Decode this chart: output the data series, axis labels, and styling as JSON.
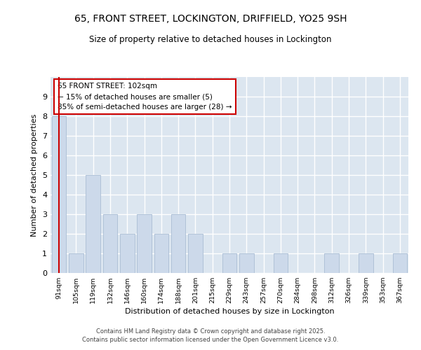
{
  "title_line1": "65, FRONT STREET, LOCKINGTON, DRIFFIELD, YO25 9SH",
  "title_line2": "Size of property relative to detached houses in Lockington",
  "xlabel": "Distribution of detached houses by size in Lockington",
  "ylabel": "Number of detached properties",
  "categories": [
    "91sqm",
    "105sqm",
    "119sqm",
    "132sqm",
    "146sqm",
    "160sqm",
    "174sqm",
    "188sqm",
    "201sqm",
    "215sqm",
    "229sqm",
    "243sqm",
    "257sqm",
    "270sqm",
    "284sqm",
    "298sqm",
    "312sqm",
    "326sqm",
    "339sqm",
    "353sqm",
    "367sqm"
  ],
  "values": [
    8,
    1,
    5,
    3,
    2,
    3,
    2,
    3,
    2,
    0,
    1,
    1,
    0,
    1,
    0,
    0,
    1,
    0,
    1,
    0,
    1
  ],
  "bar_color": "#ccd9ea",
  "bar_edge_color": "#aabdd4",
  "background_color": "#dce6f0",
  "grid_color": "#ffffff",
  "annotation_text": "65 FRONT STREET: 102sqm\n← 15% of detached houses are smaller (5)\n85% of semi-detached houses are larger (28) →",
  "annotation_box_color": "#ffffff",
  "annotation_box_edge_color": "#cc0000",
  "redline_x": 0,
  "ylim": [
    0,
    10
  ],
  "yticks": [
    0,
    1,
    2,
    3,
    4,
    5,
    6,
    7,
    8,
    9,
    10
  ],
  "footer_line1": "Contains HM Land Registry data © Crown copyright and database right 2025.",
  "footer_line2": "Contains public sector information licensed under the Open Government Licence v3.0."
}
